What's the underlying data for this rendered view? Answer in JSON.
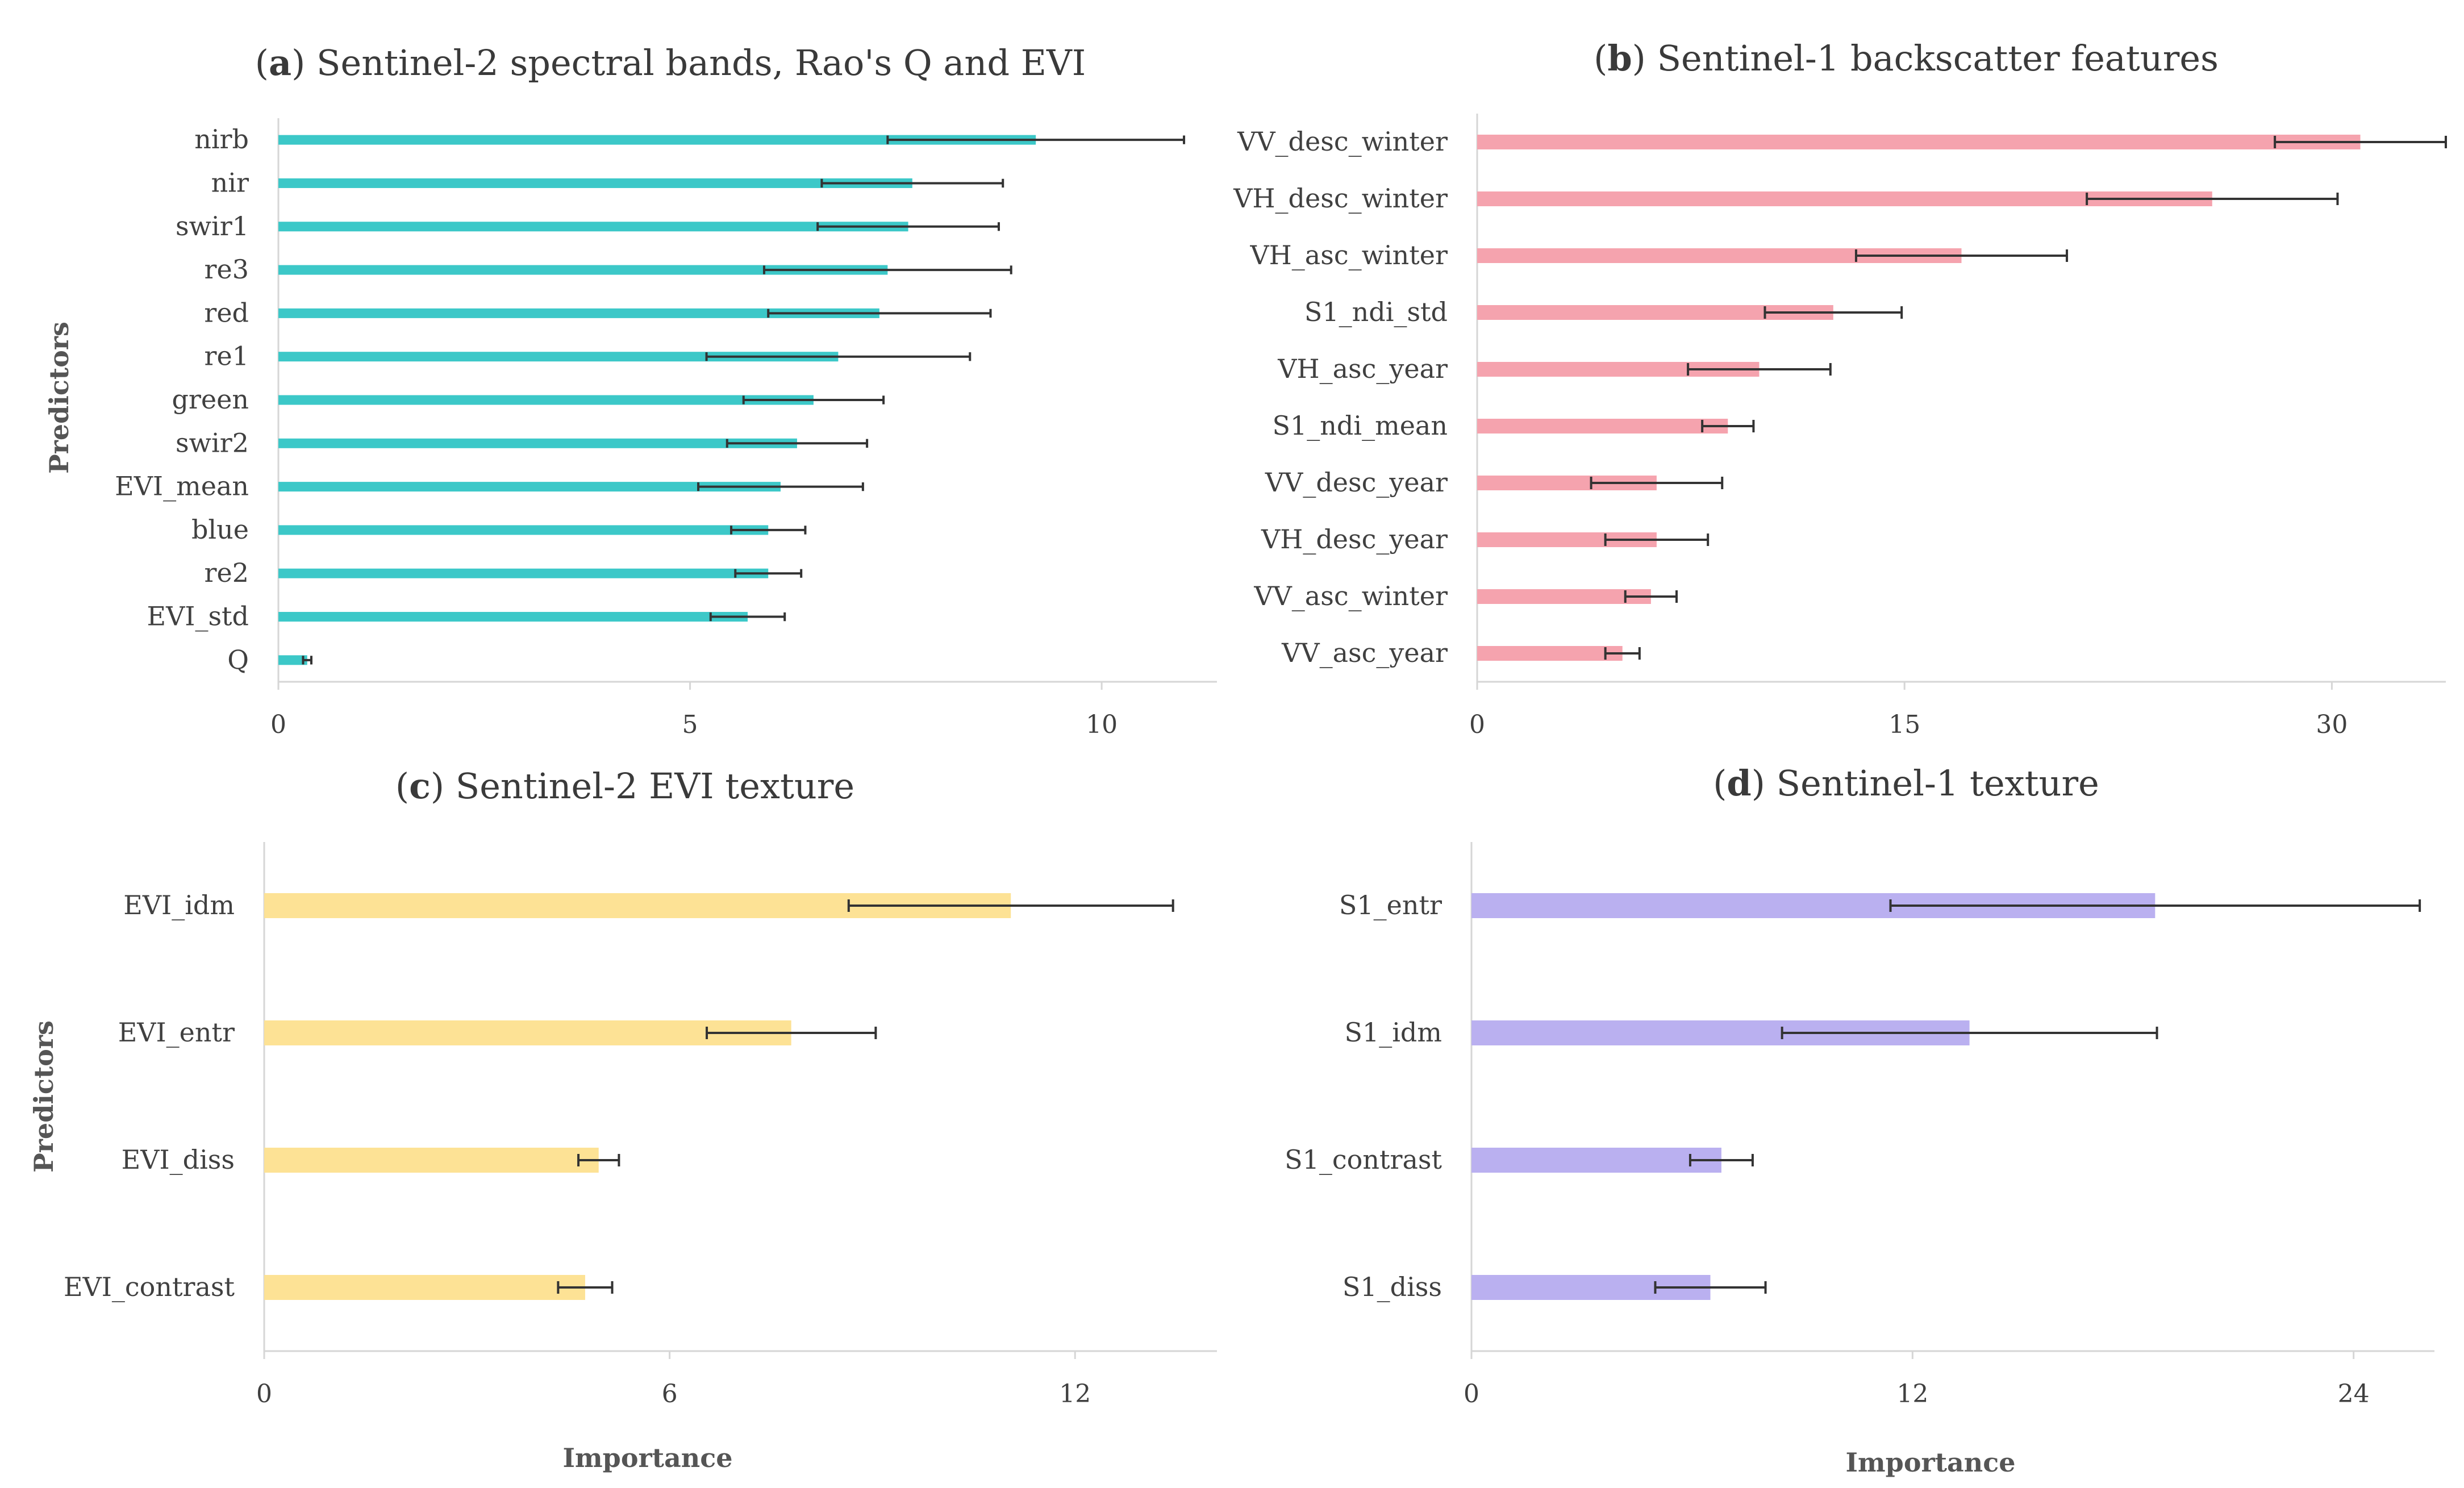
{
  "figure": {
    "y_axis_title": "Predictors",
    "x_axis_title": "Importance"
  },
  "chart_data": [
    {
      "id": "a",
      "type": "bar",
      "orientation": "horizontal",
      "title_letter": "a",
      "title_text": "Sentinel-2 spectral bands, Rao's Q and EVI",
      "color": "#3cc8c8",
      "categories": [
        "nirb",
        "nir",
        "swir1",
        "re3",
        "red",
        "re1",
        "green",
        "swir2",
        "EVI_mean",
        "blue",
        "re2",
        "EVI_std",
        "Q"
      ],
      "values": [
        9.2,
        7.7,
        7.65,
        7.4,
        7.3,
        6.8,
        6.5,
        6.3,
        6.1,
        5.95,
        5.95,
        5.7,
        0.35
      ],
      "errors": [
        1.8,
        1.1,
        1.1,
        1.5,
        1.35,
        1.6,
        0.85,
        0.85,
        1.0,
        0.45,
        0.4,
        0.45,
        0.05
      ],
      "xlim": [
        0,
        11.4
      ],
      "xticks": [
        0,
        5,
        10
      ],
      "ylabel": "Predictors",
      "xlabel": ""
    },
    {
      "id": "b",
      "type": "bar",
      "orientation": "horizontal",
      "title_letter": "b",
      "title_text": "Sentinel-1 backscatter features",
      "color": "#f5a3ae",
      "categories": [
        "VV_desc_winter",
        "VH_desc_winter",
        "VH_asc_winter",
        "S1_ndi_std",
        "VH_asc_year",
        "S1_ndi_mean",
        "VV_desc_year",
        "VH_desc_year",
        "VV_asc_winter",
        "VV_asc_year"
      ],
      "values": [
        31.0,
        25.8,
        17.0,
        12.5,
        9.9,
        8.8,
        6.3,
        6.3,
        6.1,
        5.1
      ],
      "errors": [
        3.0,
        4.4,
        3.7,
        2.4,
        2.5,
        0.9,
        2.3,
        1.8,
        0.9,
        0.6
      ],
      "xlim": [
        0,
        34
      ],
      "xticks": [
        0,
        15,
        30
      ],
      "ylabel": "",
      "xlabel": ""
    },
    {
      "id": "c",
      "type": "bar",
      "orientation": "horizontal",
      "title_letter": "c",
      "title_text": "Sentinel-2 EVI texture",
      "color": "#fde295",
      "categories": [
        "EVI_idm",
        "EVI_entr",
        "EVI_diss",
        "EVI_contrast"
      ],
      "values": [
        11.05,
        7.8,
        4.95,
        4.75
      ],
      "errors": [
        2.4,
        1.25,
        0.3,
        0.4
      ],
      "xlim": [
        0,
        14.1
      ],
      "xticks": [
        0,
        6,
        12
      ],
      "ylabel": "Predictors",
      "xlabel": "Importance"
    },
    {
      "id": "d",
      "type": "bar",
      "orientation": "horizontal",
      "title_letter": "d",
      "title_text": "Sentinel-1 texture",
      "color": "#bab0f0",
      "categories": [
        "S1_entr",
        "S1_idm",
        "S1_contrast",
        "S1_diss"
      ],
      "values": [
        18.6,
        13.55,
        6.8,
        6.5
      ],
      "errors": [
        7.2,
        5.1,
        0.85,
        1.5
      ],
      "xlim": [
        0,
        26.2
      ],
      "xticks": [
        0,
        12,
        24
      ],
      "ylabel": "",
      "xlabel": "Importance"
    }
  ]
}
